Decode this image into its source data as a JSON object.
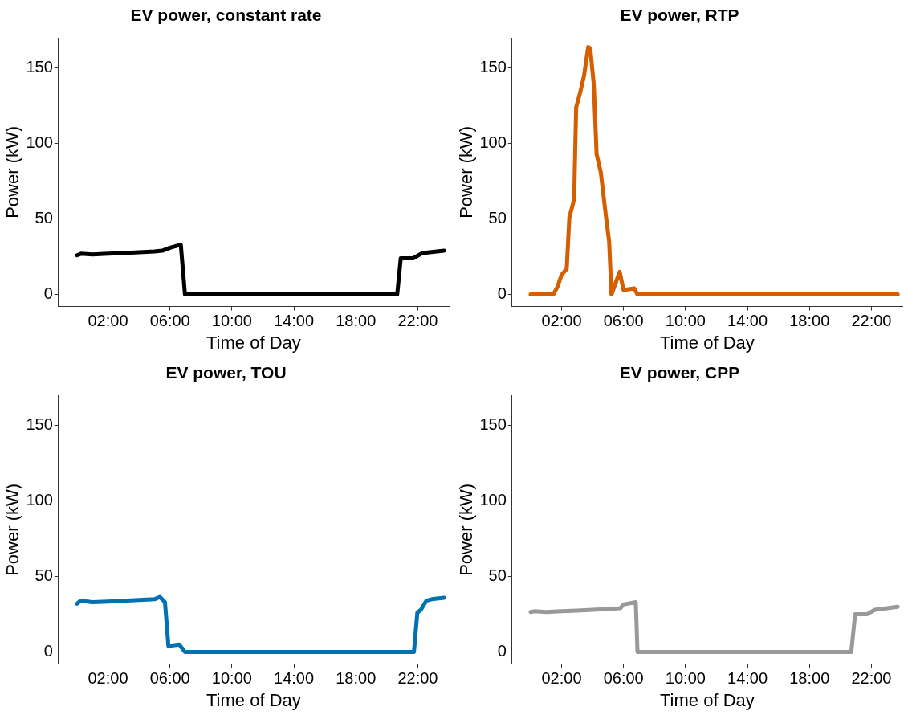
{
  "chart_data": [
    {
      "type": "line",
      "title": "EV power, constant rate",
      "xlabel": "Time of Day",
      "ylabel": "Power (kW)",
      "marker": "none",
      "line_style": "solid",
      "x": [
        0,
        0.25,
        1,
        2,
        3,
        4,
        5,
        5.5,
        6,
        6.7,
        6.97,
        20.67,
        20.9,
        21.7,
        22.3,
        23.7
      ],
      "series": [
        {
          "color": "#000000",
          "values": [
            26,
            27,
            26.5,
            27,
            27.5,
            28,
            28.5,
            29,
            31,
            33,
            0,
            0,
            24,
            24,
            27.5,
            29
          ]
        }
      ],
      "xlim": [
        -1.2,
        24
      ],
      "ylim": [
        -8,
        170
      ],
      "xticks": [
        {
          "value": 2,
          "label": "02:00"
        },
        {
          "value": 6,
          "label": "06:00"
        },
        {
          "value": 10,
          "label": "10:00"
        },
        {
          "value": 14,
          "label": "14:00"
        },
        {
          "value": 18,
          "label": "18:00"
        },
        {
          "value": 22,
          "label": "22:00"
        }
      ],
      "yticks": [
        0,
        50,
        100,
        150
      ]
    },
    {
      "type": "line",
      "title": "EV power, RTP",
      "xlabel": "Time of Day",
      "ylabel": "Power (kW)",
      "marker": "none",
      "line_style": "solid",
      "x": [
        0,
        1.46,
        1.73,
        2.0,
        2.33,
        2.5,
        2.81,
        2.94,
        3.18,
        3.45,
        3.72,
        3.85,
        4.08,
        4.26,
        4.53,
        4.86,
        5.07,
        5.22,
        5.43,
        5.75,
        6.0,
        6.69,
        6.9,
        23.7
      ],
      "series": [
        {
          "color": "#d55e00",
          "values": [
            0,
            0,
            5,
            13,
            17,
            51,
            63,
            124,
            133,
            145,
            164,
            163,
            139,
            93,
            81,
            52,
            35,
            0,
            6,
            15,
            3,
            4,
            0,
            0
          ]
        }
      ],
      "xlim": [
        -1.2,
        24
      ],
      "ylim": [
        -8,
        170
      ],
      "xticks": [
        {
          "value": 2,
          "label": "02:00"
        },
        {
          "value": 6,
          "label": "06:00"
        },
        {
          "value": 10,
          "label": "10:00"
        },
        {
          "value": 14,
          "label": "14:00"
        },
        {
          "value": 18,
          "label": "18:00"
        },
        {
          "value": 22,
          "label": "22:00"
        }
      ],
      "yticks": [
        0,
        50,
        100,
        150
      ]
    },
    {
      "type": "line",
      "title": "EV power, TOU",
      "xlabel": "Time of Day",
      "ylabel": "Power (kW)",
      "marker": "none",
      "line_style": "solid",
      "x": [
        0,
        0.23,
        1,
        2,
        3,
        4,
        5,
        5.35,
        5.68,
        5.9,
        6.6,
        6.97,
        21.75,
        21.97,
        22.2,
        22.55,
        22.9,
        23.7
      ],
      "series": [
        {
          "color": "#0072b2",
          "values": [
            32,
            34,
            33,
            33.5,
            34,
            34.5,
            35,
            36.5,
            33,
            4,
            5,
            0,
            0,
            26,
            28,
            34,
            35,
            36
          ]
        }
      ],
      "xlim": [
        -1.2,
        24
      ],
      "ylim": [
        -8,
        170
      ],
      "xticks": [
        {
          "value": 2,
          "label": "02:00"
        },
        {
          "value": 6,
          "label": "06:00"
        },
        {
          "value": 10,
          "label": "10:00"
        },
        {
          "value": 14,
          "label": "14:00"
        },
        {
          "value": 18,
          "label": "18:00"
        },
        {
          "value": 22,
          "label": "22:00"
        }
      ],
      "yticks": [
        0,
        50,
        100,
        150
      ]
    },
    {
      "type": "line",
      "title": "EV power, CPP",
      "xlabel": "Time of Day",
      "ylabel": "Power (kW)",
      "marker": "none",
      "line_style": "solid",
      "x": [
        0,
        0.25,
        1,
        2,
        3,
        4,
        5,
        5.8,
        5.98,
        6.79,
        6.9,
        20.7,
        20.95,
        21.72,
        22.23,
        23.7
      ],
      "series": [
        {
          "color": "#999999",
          "values": [
            26.5,
            27,
            26.5,
            27,
            27.5,
            28,
            28.5,
            29,
            31.5,
            33,
            0,
            0,
            25,
            25,
            28,
            30
          ]
        }
      ],
      "xlim": [
        -1.2,
        24
      ],
      "ylim": [
        -8,
        170
      ],
      "xticks": [
        {
          "value": 2,
          "label": "02:00"
        },
        {
          "value": 6,
          "label": "06:00"
        },
        {
          "value": 10,
          "label": "10:00"
        },
        {
          "value": 14,
          "label": "14:00"
        },
        {
          "value": 18,
          "label": "18:00"
        },
        {
          "value": 22,
          "label": "22:00"
        }
      ],
      "yticks": [
        0,
        50,
        100,
        150
      ]
    }
  ]
}
